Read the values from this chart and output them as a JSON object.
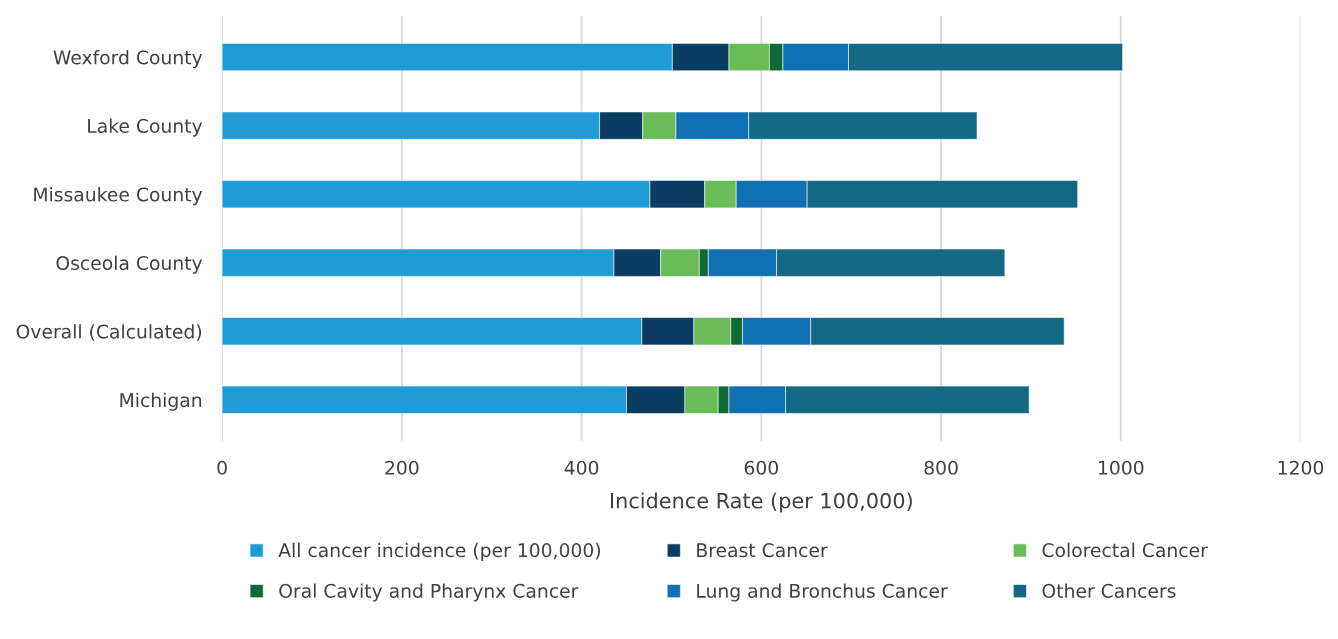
{
  "chart_data": {
    "type": "bar",
    "orientation": "horizontal",
    "stacked": true,
    "xlabel": "Incidence Rate (per 100,000)",
    "categories": [
      "Wexford County",
      "Lake County",
      "Missaukee County",
      "Osceola County",
      "Overall (Calculated)",
      "Michigan"
    ],
    "series": [
      {
        "name": "All cancer incidence (per 100,000)",
        "color": "#1f9bd7",
        "values": [
          501,
          420,
          476,
          436,
          467,
          450
        ]
      },
      {
        "name": "Breast Cancer",
        "color": "#0b3d63",
        "values": [
          63,
          48,
          61,
          52,
          58,
          65
        ]
      },
      {
        "name": "Colorectal Cancer",
        "color": "#69bc57",
        "values": [
          45,
          37,
          35,
          43,
          41,
          37
        ]
      },
      {
        "name": "Oral Cavity and Pharynx Cancer",
        "color": "#0e6a35",
        "values": [
          15,
          null,
          null,
          10,
          13,
          12
        ]
      },
      {
        "name": "Lung and Bronchus Cancer",
        "color": "#116fb3",
        "values": [
          73,
          81,
          79,
          76,
          76,
          63
        ]
      },
      {
        "name": "Other Cancers",
        "color": "#136884",
        "values": [
          305,
          254,
          301,
          254,
          282,
          271
        ]
      }
    ],
    "xlim": [
      0,
      1200
    ],
    "xticks": [
      0,
      200,
      400,
      600,
      800,
      1000,
      1200
    ],
    "grid": "x",
    "legend": "bottom"
  }
}
